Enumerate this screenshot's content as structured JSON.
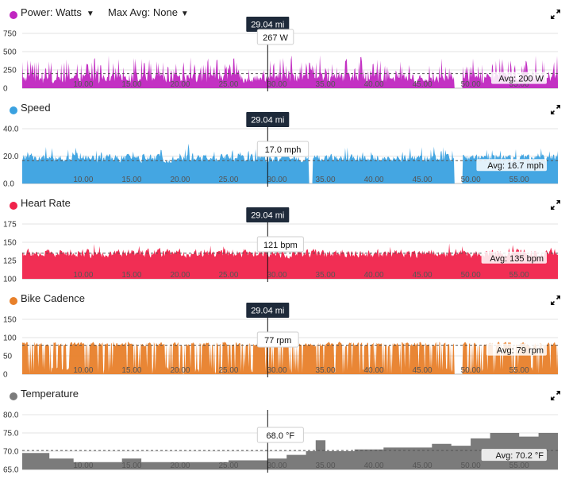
{
  "cursor": {
    "label": "29.04 mi",
    "x_value": 29.04
  },
  "chart_data": [
    {
      "type": "area",
      "name": "Power: Watts",
      "color": "#c026c0",
      "dropdowns": [
        {
          "label": "Max Avg: None"
        }
      ],
      "yticks": [
        "750",
        "500",
        "250",
        "0"
      ],
      "ylim": [
        0,
        750
      ],
      "xlim": [
        3.7,
        59
      ],
      "xticks": [
        "10.00",
        "15.00",
        "20.00",
        "25.00",
        "30.00",
        "35.00",
        "40.00",
        "45.00",
        "50.00",
        "55.00"
      ],
      "avg_value": 200,
      "avg_label": "Avg: 200 W",
      "cursor_label": "267 W",
      "gaps": [
        [
          48.3,
          49.2
        ]
      ],
      "profile": {
        "base": 140,
        "noise": 90,
        "spike_rate": 0.35,
        "spike": 260,
        "min": 0,
        "max": 560
      }
    },
    {
      "type": "area",
      "name": "Speed",
      "color": "#3aa1e0",
      "dropdowns": [],
      "yticks": [
        "40.0",
        "20.0",
        "0.0"
      ],
      "ylim": [
        0,
        40
      ],
      "xlim": [
        3.7,
        59
      ],
      "xticks": [
        "10.00",
        "15.00",
        "20.00",
        "25.00",
        "30.00",
        "35.00",
        "40.00",
        "45.00",
        "50.00",
        "55.00"
      ],
      "avg_value": 16.7,
      "avg_label": "Avg: 16.7 mph",
      "cursor_label": "17.0 mph",
      "gaps": [
        [
          33.3,
          33.7
        ],
        [
          48.3,
          49.2
        ]
      ],
      "profile": {
        "base": 18.5,
        "noise": 4,
        "spike_rate": 0.15,
        "spike": 8,
        "min": 8,
        "max": 31
      }
    },
    {
      "type": "area",
      "name": "Heart Rate",
      "color": "#f0234b",
      "dropdowns": [],
      "yticks": [
        "175",
        "150",
        "125",
        "100"
      ],
      "ylim": [
        100,
        175
      ],
      "xlim": [
        3.7,
        59
      ],
      "xticks": [
        "10.00",
        "15.00",
        "20.00",
        "25.00",
        "30.00",
        "35.00",
        "40.00",
        "45.00",
        "50.00",
        "55.00"
      ],
      "avg_value": 135,
      "avg_label": "Avg: 135 bpm",
      "cursor_label": "121 bpm",
      "gaps": [],
      "profile": {
        "base": 135,
        "noise": 8,
        "spike_rate": 0.05,
        "spike": 10,
        "min": 104,
        "max": 152
      }
    },
    {
      "type": "area",
      "name": "Bike Cadence",
      "color": "#e8802a",
      "dropdowns": [],
      "yticks": [
        "150",
        "100",
        "50",
        "0"
      ],
      "ylim": [
        0,
        150
      ],
      "xlim": [
        3.7,
        59
      ],
      "xticks": [
        "10.00",
        "15.00",
        "20.00",
        "25.00",
        "30.00",
        "35.00",
        "40.00",
        "45.00",
        "50.00",
        "55.00"
      ],
      "avg_value": 79,
      "avg_label": "Avg: 79 rpm",
      "cursor_label": "77 rpm",
      "gaps": [
        [
          48.3,
          49.2
        ]
      ],
      "profile": {
        "base": 82,
        "noise": 8,
        "spike_rate": 0.0,
        "spike": 0,
        "min": 0,
        "max": 104,
        "drop_rate": 0.22
      }
    },
    {
      "type": "area",
      "name": "Temperature",
      "color": "#7b7b7b",
      "dropdowns": [],
      "yticks": [
        "80.0",
        "75.0",
        "70.0",
        "65.0"
      ],
      "ylim": [
        65,
        80
      ],
      "xlim": [
        3.7,
        59
      ],
      "xticks": [
        "10.00",
        "15.00",
        "20.00",
        "25.00",
        "30.00",
        "35.00",
        "40.00",
        "45.00",
        "50.00",
        "55.00"
      ],
      "avg_value": 70.2,
      "avg_label": "Avg: 70.2 °F",
      "cursor_label": "68.0 °F",
      "gaps": [],
      "steps": [
        [
          3.7,
          69.5
        ],
        [
          6.5,
          68
        ],
        [
          9,
          67
        ],
        [
          14,
          68
        ],
        [
          16,
          67
        ],
        [
          25,
          67.5
        ],
        [
          29.04,
          68
        ],
        [
          31,
          69
        ],
        [
          33,
          70
        ],
        [
          34,
          73
        ],
        [
          35,
          70
        ],
        [
          38,
          70.5
        ],
        [
          41,
          71
        ],
        [
          46,
          72
        ],
        [
          48,
          71.5
        ],
        [
          50,
          73.5
        ],
        [
          52,
          75
        ],
        [
          55,
          74
        ],
        [
          57,
          75
        ],
        [
          59,
          75
        ]
      ]
    }
  ]
}
